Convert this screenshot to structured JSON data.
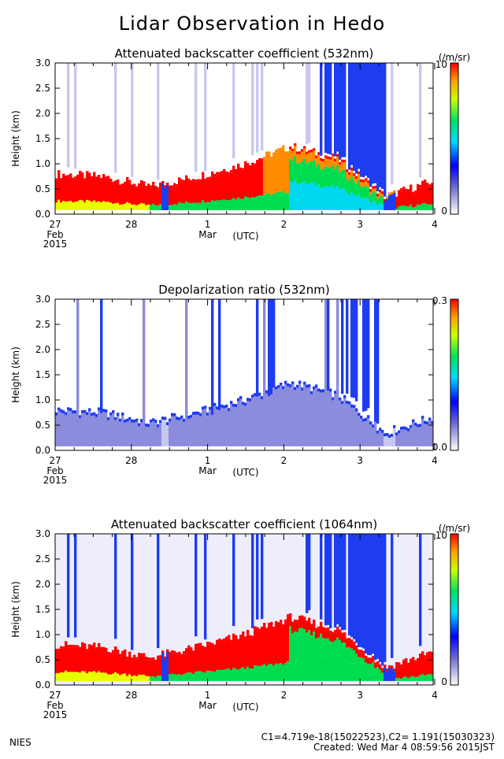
{
  "figure": {
    "title": "Lidar Observation in Hedo",
    "institution": "NIES",
    "calibration_note": "C1=4.719e-18(15022523),C2= 1.191(15030323)",
    "created_note": "Created: Wed Mar  4 08:59:56 2015JST"
  },
  "chart_data": [
    {
      "type": "heatmap",
      "title": "Attenuated backscatter coefficient (532nm)",
      "ylabel": "Height (km)",
      "ylim": [
        0.0,
        3.0
      ],
      "yticks": [
        "0.0",
        "0.5",
        "1.0",
        "1.5",
        "2.0",
        "2.5",
        "3.0"
      ],
      "xlabel": "(UTC)",
      "xticks": [
        "27",
        "28",
        "1",
        "2",
        "3",
        "4"
      ],
      "xsub": [
        "Feb",
        "",
        "Mar",
        "",
        "",
        ""
      ],
      "year": "2015",
      "colorbar": {
        "max_label": "10",
        "min_label": "0",
        "unit": "(/m/sr)",
        "scale": "rainbow"
      },
      "boundary_layer_km": [
        0.75,
        0.7,
        0.5,
        0.7,
        0.95,
        1.3,
        1.05,
        0.3,
        0.6
      ],
      "grid": false
    },
    {
      "type": "heatmap",
      "title": "Depolarization ratio (532nm)",
      "ylabel": "Height (km)",
      "ylim": [
        0.0,
        3.0
      ],
      "yticks": [
        "0.0",
        "0.5",
        "1.0",
        "1.5",
        "2.0",
        "2.5",
        "3.0"
      ],
      "xlabel": "(UTC)",
      "xticks": [
        "27",
        "28",
        "1",
        "2",
        "3",
        "4"
      ],
      "xsub": [
        "Feb",
        "",
        "Mar",
        "",
        "",
        ""
      ],
      "year": "2015",
      "colorbar": {
        "max_label": "0.3",
        "min_label": "0.0",
        "unit": "",
        "scale": "rainbow"
      },
      "grid": false
    },
    {
      "type": "heatmap",
      "title": "Attenuated backscatter coefficient (1064nm)",
      "ylabel": "Height (km)",
      "ylim": [
        0.0,
        3.0
      ],
      "yticks": [
        "0.0",
        "0.5",
        "1.0",
        "1.5",
        "2.0",
        "2.5",
        "3.0"
      ],
      "xlabel": "(UTC)",
      "xticks": [
        "27",
        "28",
        "1",
        "2",
        "3",
        "4"
      ],
      "xsub": [
        "Feb",
        "",
        "Mar",
        "",
        "",
        ""
      ],
      "year": "2015",
      "colorbar": {
        "max_label": "10",
        "min_label": "0",
        "unit": "(/m/sr)",
        "scale": "rainbow"
      },
      "grid": false
    }
  ]
}
